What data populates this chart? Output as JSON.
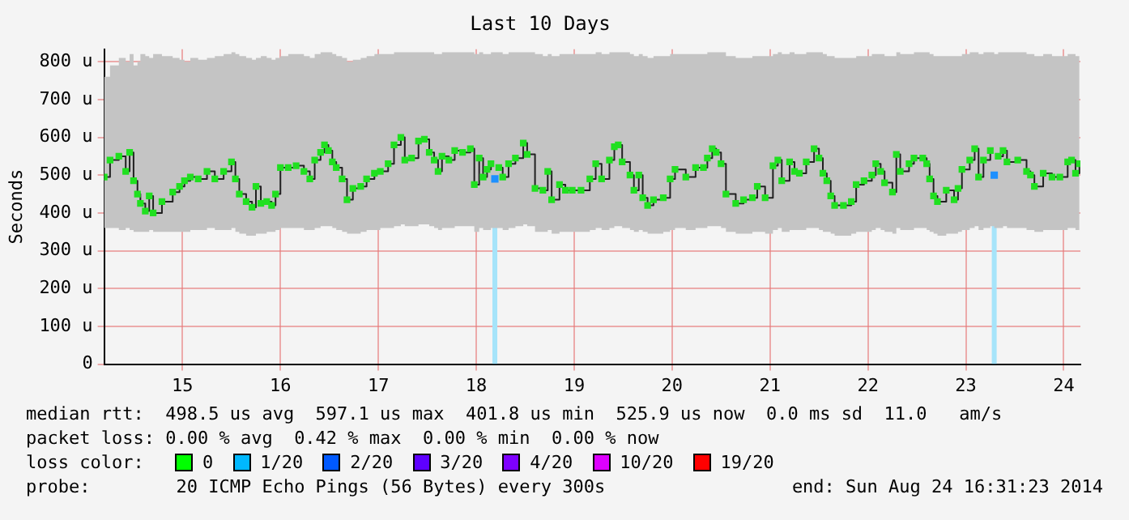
{
  "chart_data": {
    "type": "step",
    "title": "Last 10 Days",
    "ylabel": "Seconds",
    "xlim": [
      14.2,
      24.17
    ],
    "xticks": [
      15,
      16,
      17,
      18,
      19,
      20,
      21,
      22,
      23,
      24
    ],
    "ylim": [
      0,
      833
    ],
    "yticks": [
      {
        "value": 0,
        "label": "0"
      },
      {
        "value": 100,
        "label": "100 u"
      },
      {
        "value": 200,
        "label": "200 u"
      },
      {
        "value": 300,
        "label": "300 u"
      },
      {
        "value": 400,
        "label": "400 u"
      },
      {
        "value": 500,
        "label": "500 u"
      },
      {
        "value": 600,
        "label": "600 u"
      },
      {
        "value": 700,
        "label": "700 u"
      },
      {
        "value": 800,
        "label": "800 u"
      }
    ],
    "grid": true,
    "legend": false,
    "marker": "square",
    "series": [
      {
        "color": "#20e020",
        "x": [
          14.2,
          14.26,
          14.35,
          14.42,
          14.46,
          14.5,
          14.54,
          14.57,
          14.62,
          14.66,
          14.7,
          14.79,
          14.9,
          14.97,
          15.02,
          15.08,
          15.16,
          15.25,
          15.33,
          15.42,
          15.5,
          15.54,
          15.58,
          15.65,
          15.71,
          15.75,
          15.8,
          15.86,
          15.91,
          15.95,
          16.0,
          16.08,
          16.16,
          16.24,
          16.3,
          16.35,
          16.41,
          16.45,
          16.49,
          16.53,
          16.57,
          16.63,
          16.68,
          16.74,
          16.82,
          16.88,
          16.96,
          17.02,
          17.1,
          17.16,
          17.23,
          17.27,
          17.34,
          17.41,
          17.47,
          17.52,
          17.57,
          17.61,
          17.65,
          17.72,
          17.78,
          17.86,
          17.94,
          17.98,
          18.03,
          18.07,
          18.11,
          18.15,
          18.19,
          18.23,
          18.27,
          18.33,
          18.4,
          18.48,
          18.52,
          18.6,
          18.68,
          18.73,
          18.77,
          18.85,
          18.91,
          18.98,
          19.07,
          19.16,
          19.22,
          19.28,
          19.36,
          19.41,
          19.45,
          19.49,
          19.57,
          19.61,
          19.66,
          19.7,
          19.75,
          19.81,
          19.91,
          19.98,
          20.03,
          20.14,
          20.24,
          20.32,
          20.36,
          20.41,
          20.45,
          20.5,
          20.55,
          20.65,
          20.73,
          20.82,
          20.87,
          20.95,
          21.03,
          21.08,
          21.12,
          21.2,
          21.25,
          21.3,
          21.37,
          21.45,
          21.5,
          21.54,
          21.58,
          21.62,
          21.66,
          21.75,
          21.83,
          21.88,
          21.96,
          22.04,
          22.08,
          22.13,
          22.17,
          22.25,
          22.29,
          22.33,
          22.42,
          22.47,
          22.56,
          22.6,
          22.63,
          22.67,
          22.71,
          22.8,
          22.88,
          22.92,
          22.96,
          23.04,
          23.09,
          23.13,
          23.18,
          23.25,
          23.29,
          23.33,
          23.38,
          23.42,
          23.53,
          23.62,
          23.66,
          23.7,
          23.79,
          23.88,
          23.96,
          24.04,
          24.08,
          24.12,
          24.16
        ],
        "values": [
          495,
          540,
          550,
          510,
          560,
          485,
          450,
          425,
          405,
          445,
          400,
          430,
          455,
          470,
          485,
          495,
          490,
          510,
          490,
          510,
          535,
          490,
          450,
          430,
          415,
          470,
          425,
          430,
          420,
          450,
          520,
          520,
          525,
          510,
          490,
          540,
          560,
          580,
          565,
          535,
          520,
          490,
          435,
          465,
          470,
          490,
          505,
          510,
          530,
          580,
          600,
          540,
          545,
          590,
          595,
          560,
          540,
          510,
          550,
          540,
          565,
          560,
          570,
          475,
          545,
          495,
          515,
          530,
          null,
          520,
          495,
          530,
          545,
          585,
          555,
          465,
          460,
          510,
          435,
          475,
          460,
          460,
          460,
          490,
          530,
          490,
          540,
          575,
          580,
          535,
          500,
          460,
          500,
          440,
          420,
          435,
          440,
          490,
          515,
          495,
          520,
          520,
          545,
          570,
          560,
          530,
          450,
          425,
          435,
          440,
          470,
          440,
          525,
          540,
          485,
          535,
          510,
          505,
          535,
          570,
          545,
          505,
          485,
          445,
          420,
          420,
          430,
          475,
          485,
          500,
          530,
          510,
          480,
          455,
          555,
          510,
          530,
          545,
          545,
          530,
          490,
          445,
          430,
          460,
          435,
          465,
          515,
          540,
          570,
          495,
          540,
          565,
          null,
          550,
          565,
          535,
          540,
          510,
          500,
          470,
          505,
          495,
          495,
          535,
          540,
          505,
          530
        ],
        "lower": [
          360,
          360,
          355,
          360,
          355,
          350,
          350,
          350,
          350,
          355,
          350,
          350,
          350,
          350,
          350,
          355,
          355,
          360,
          355,
          355,
          360,
          350,
          345,
          340,
          340,
          345,
          345,
          350,
          350,
          355,
          360,
          360,
          360,
          355,
          355,
          360,
          365,
          365,
          365,
          360,
          355,
          350,
          345,
          345,
          350,
          355,
          355,
          360,
          360,
          365,
          370,
          365,
          365,
          370,
          370,
          365,
          360,
          355,
          360,
          360,
          365,
          365,
          365,
          350,
          360,
          355,
          355,
          360,
          360,
          360,
          355,
          360,
          365,
          370,
          365,
          350,
          350,
          355,
          345,
          350,
          350,
          350,
          350,
          355,
          360,
          355,
          360,
          365,
          365,
          360,
          355,
          350,
          355,
          350,
          345,
          345,
          350,
          355,
          360,
          355,
          360,
          360,
          365,
          365,
          365,
          360,
          350,
          345,
          345,
          350,
          350,
          345,
          355,
          360,
          350,
          355,
          355,
          355,
          360,
          360,
          355,
          350,
          350,
          345,
          340,
          340,
          345,
          350,
          350,
          355,
          360,
          355,
          350,
          345,
          360,
          355,
          355,
          360,
          360,
          355,
          350,
          345,
          340,
          345,
          345,
          350,
          355,
          360,
          365,
          355,
          360,
          365,
          360,
          360,
          365,
          360,
          360,
          355,
          355,
          350,
          355,
          355,
          355,
          360,
          360,
          355,
          360
        ],
        "upper": [
          760,
          790,
          810,
          800,
          820,
          790,
          800,
          820,
          815,
          810,
          820,
          815,
          810,
          805,
          800,
          810,
          805,
          810,
          815,
          820,
          825,
          820,
          815,
          810,
          805,
          810,
          815,
          810,
          805,
          810,
          815,
          820,
          820,
          815,
          810,
          820,
          825,
          825,
          825,
          820,
          815,
          810,
          800,
          805,
          810,
          815,
          820,
          820,
          820,
          825,
          825,
          825,
          825,
          825,
          825,
          825,
          820,
          820,
          825,
          825,
          825,
          825,
          825,
          820,
          825,
          820,
          820,
          825,
          825,
          825,
          820,
          825,
          825,
          825,
          825,
          820,
          815,
          820,
          815,
          820,
          820,
          820,
          820,
          820,
          825,
          820,
          825,
          825,
          825,
          825,
          820,
          815,
          820,
          815,
          810,
          815,
          815,
          820,
          820,
          820,
          820,
          820,
          825,
          825,
          825,
          825,
          815,
          810,
          810,
          815,
          815,
          815,
          820,
          825,
          820,
          825,
          820,
          820,
          825,
          825,
          825,
          820,
          815,
          815,
          810,
          810,
          810,
          815,
          815,
          820,
          820,
          820,
          815,
          815,
          825,
          820,
          820,
          825,
          825,
          825,
          820,
          815,
          815,
          815,
          815,
          815,
          820,
          825,
          825,
          820,
          825,
          825,
          820,
          825,
          825,
          825,
          825,
          820,
          820,
          815,
          820,
          815,
          815,
          820,
          820,
          815,
          820
        ]
      },
      {
        "type": "scatter",
        "color": "#1e90ff",
        "x": [
          18.19,
          23.29
        ],
        "values": [
          490,
          500
        ]
      }
    ],
    "ref_lines": [
      {
        "axis": "x",
        "value": 18.19,
        "color": "#a6e4fa"
      },
      {
        "axis": "x",
        "value": 23.29,
        "color": "#a6e4fa"
      }
    ],
    "annotations": [
      "median rtt:  498.5 us avg  597.1 us max  401.8 us min  525.9 us now  0.0 ms sd  11.0   am/s",
      "packet loss: 0.00 % avg  0.42 % max  0.00 % min  0.00 % now",
      "loss color:",
      "0",
      "1/20",
      "2/20",
      "3/20",
      "4/20",
      "10/20",
      "19/20",
      "probe:        20 ICMP Echo Pings (56 Bytes) every 300s",
      "end: Sun Aug 24 16:31:23 2014"
    ]
  }
}
